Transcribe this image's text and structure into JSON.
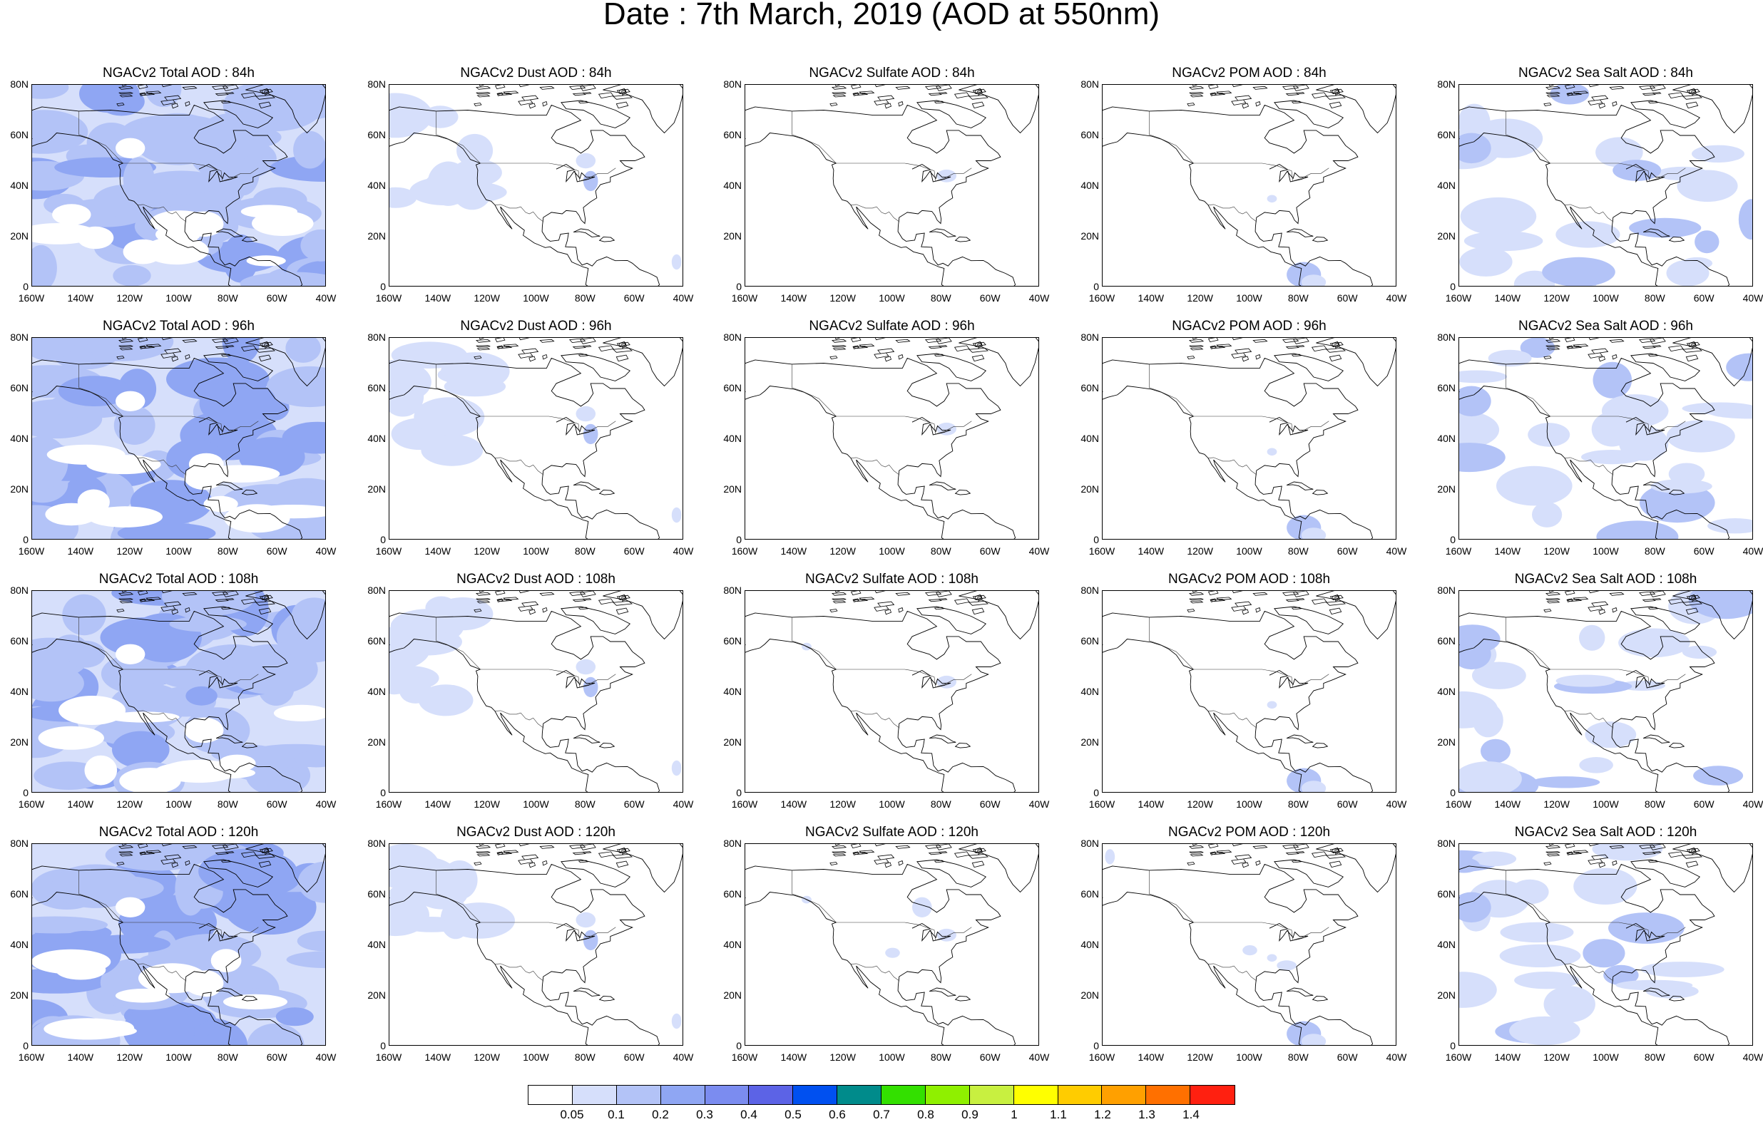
{
  "title": "Date : 7th March, 2019 (AOD at 550nm)",
  "panels": [
    [
      "NGACv2 Total AOD : 84h",
      "NGACv2 Dust AOD : 84h",
      "NGACv2 Sulfate AOD : 84h",
      "NGACv2 POM AOD : 84h",
      "NGACv2 Sea Salt AOD : 84h"
    ],
    [
      "NGACv2 Total AOD : 96h",
      "NGACv2 Dust AOD : 96h",
      "NGACv2 Sulfate AOD : 96h",
      "NGACv2 POM AOD : 96h",
      "NGACv2 Sea Salt AOD : 96h"
    ],
    [
      "NGACv2 Total AOD : 108h",
      "NGACv2 Dust AOD : 108h",
      "NGACv2 Sulfate AOD : 108h",
      "NGACv2 POM AOD : 108h",
      "NGACv2 Sea Salt AOD : 108h"
    ],
    [
      "NGACv2 Total AOD : 120h",
      "NGACv2 Dust AOD : 120h",
      "NGACv2 Sulfate AOD : 120h",
      "NGACv2 POM AOD : 120h",
      "NGACv2 Sea Salt  AOD : 120h"
    ]
  ],
  "lat_ticks": [
    "80N",
    "60N",
    "40N",
    "20N",
    "0"
  ],
  "lon_ticks": [
    "160W",
    "140W",
    "120W",
    "100W",
    "80W",
    "60W",
    "40W"
  ],
  "colorbar": {
    "colors": [
      "#ffffff",
      "#d6dffb",
      "#b3c3f7",
      "#8fa6f3",
      "#7b8cf0",
      "#5c63e6",
      "#0050f0",
      "#008b8b",
      "#33e000",
      "#8ff000",
      "#c8f040",
      "#ffff00",
      "#ffcc00",
      "#ffa000",
      "#ff7000",
      "#ff2010"
    ],
    "labels": [
      "0.05",
      "0.1",
      "0.2",
      "0.3",
      "0.4",
      "0.5",
      "0.6",
      "0.7",
      "0.8",
      "0.9",
      "1",
      "1.1",
      "1.2",
      "1.3",
      "1.4"
    ]
  },
  "coverage": {
    "total": "dense light-blue",
    "dust": "sparse light-blue",
    "sulfate": "minimal",
    "pom": "minimal",
    "seasalt": "moderate light-blue"
  }
}
